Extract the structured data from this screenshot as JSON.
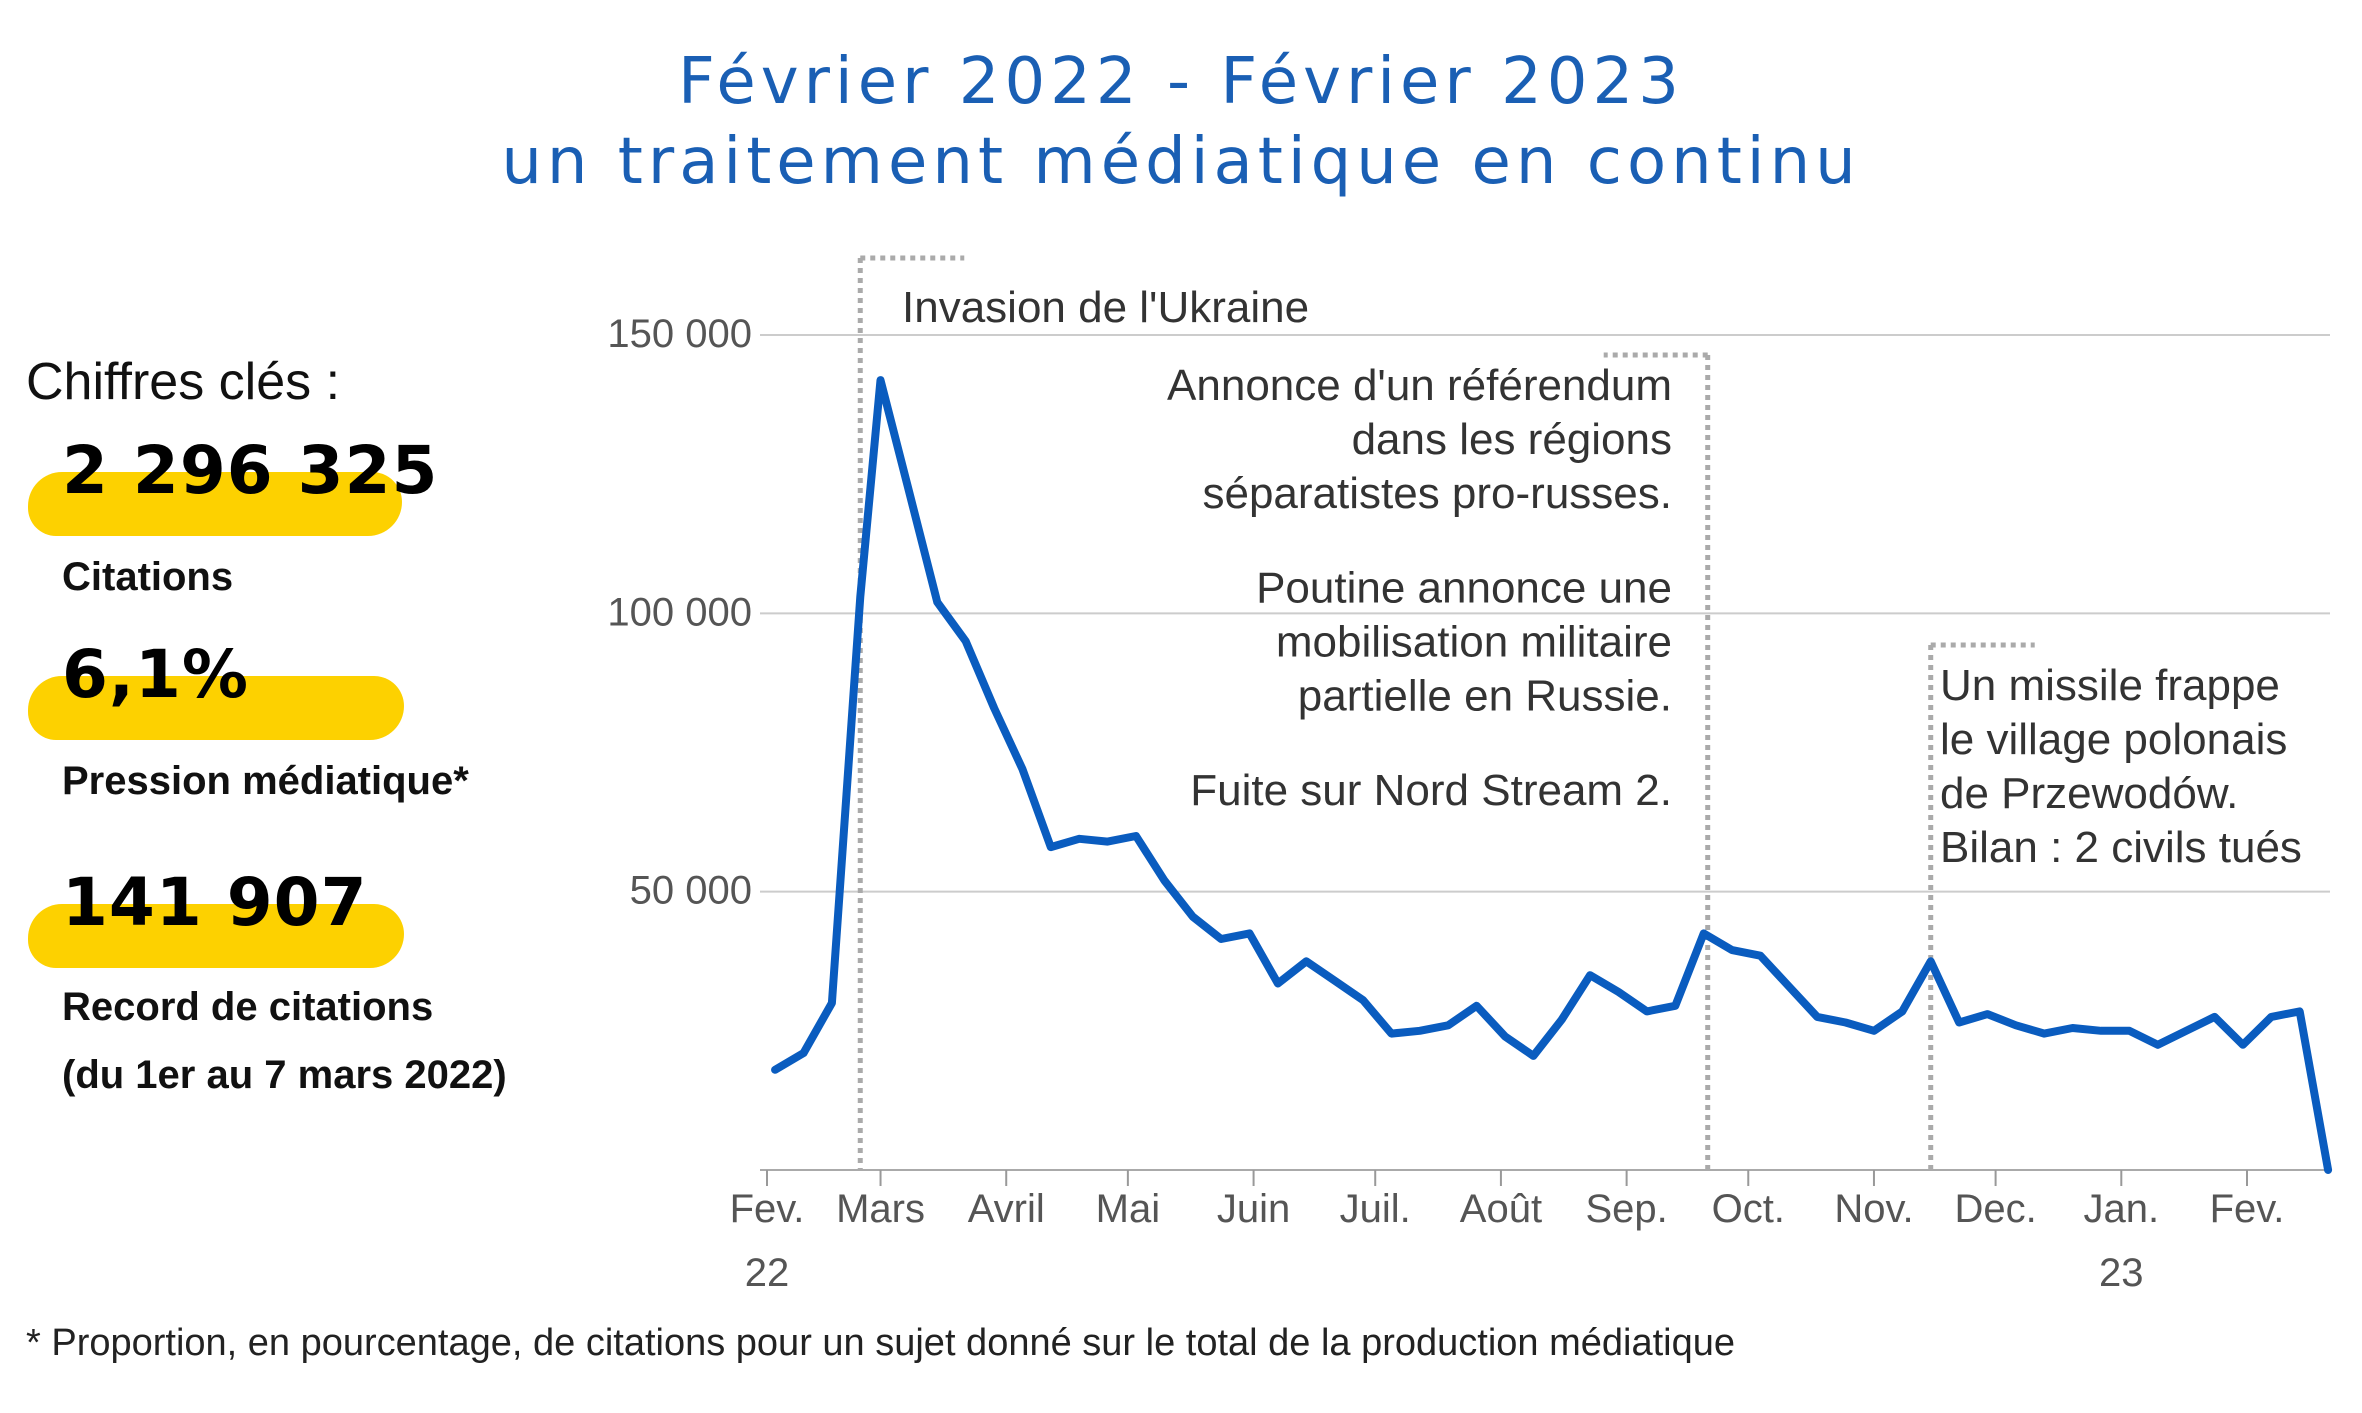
{
  "title": {
    "line1": "Février 2022 - Février 2023",
    "line2": "un traitement médiatique en continu"
  },
  "key_figures": {
    "heading": "Chiffres clés :",
    "items": [
      {
        "value": "2 296 325",
        "label_lines": [
          "Citations"
        ]
      },
      {
        "value": "6,1%",
        "label_lines": [
          "Pression médiatique*"
        ]
      },
      {
        "value": "141 907",
        "label_lines": [
          "Record de citations",
          "(du 1er au 7 mars 2022)"
        ]
      }
    ],
    "highlight_color": "#fdd100"
  },
  "footnote": "* Proportion, en pourcentage, de citations pour un sujet donné sur le total de la production médiatique",
  "chart_data": {
    "type": "line",
    "line_color": "#0a5cbf",
    "grid": true,
    "ylim": [
      0,
      150000
    ],
    "y_ticks": [
      {
        "value": 50000,
        "label": "50 000"
      },
      {
        "value": 100000,
        "label": "100 000"
      },
      {
        "value": 150000,
        "label": "150 000"
      }
    ],
    "x_ticks": [
      {
        "date": "2022-02-01",
        "label": "Fev.",
        "sublabel": "22"
      },
      {
        "date": "2022-03-01",
        "label": "Mars"
      },
      {
        "date": "2022-04-01",
        "label": "Avril"
      },
      {
        "date": "2022-05-01",
        "label": "Mai"
      },
      {
        "date": "2022-06-01",
        "label": "Juin"
      },
      {
        "date": "2022-07-01",
        "label": "Juil."
      },
      {
        "date": "2022-08-01",
        "label": "Août"
      },
      {
        "date": "2022-09-01",
        "label": "Sep."
      },
      {
        "date": "2022-10-01",
        "label": "Oct."
      },
      {
        "date": "2022-11-01",
        "label": "Nov."
      },
      {
        "date": "2022-12-01",
        "label": "Dec."
      },
      {
        "date": "2023-01-01",
        "label": "Jan.",
        "sublabel": "23"
      },
      {
        "date": "2023-02-01",
        "label": "Fev."
      }
    ],
    "series": [
      {
        "points": [
          [
            "2022-02-03",
            18000
          ],
          [
            "2022-02-10",
            21000
          ],
          [
            "2022-02-17",
            30000
          ],
          [
            "2022-02-24",
            103000
          ],
          [
            "2022-03-01",
            141907
          ],
          [
            "2022-03-08",
            122000
          ],
          [
            "2022-03-15",
            102000
          ],
          [
            "2022-03-22",
            95000
          ],
          [
            "2022-03-29",
            83000
          ],
          [
            "2022-04-05",
            72000
          ],
          [
            "2022-04-12",
            58000
          ],
          [
            "2022-04-19",
            59500
          ],
          [
            "2022-04-26",
            59000
          ],
          [
            "2022-05-03",
            60000
          ],
          [
            "2022-05-10",
            52000
          ],
          [
            "2022-05-17",
            45500
          ],
          [
            "2022-05-24",
            41500
          ],
          [
            "2022-05-31",
            42500
          ],
          [
            "2022-06-07",
            33500
          ],
          [
            "2022-06-14",
            37500
          ],
          [
            "2022-06-21",
            34000
          ],
          [
            "2022-06-28",
            30500
          ],
          [
            "2022-07-05",
            24500
          ],
          [
            "2022-07-12",
            25000
          ],
          [
            "2022-07-19",
            26000
          ],
          [
            "2022-07-26",
            29500
          ],
          [
            "2022-08-02",
            24000
          ],
          [
            "2022-08-09",
            20500
          ],
          [
            "2022-08-16",
            27000
          ],
          [
            "2022-08-23",
            35000
          ],
          [
            "2022-08-30",
            32000
          ],
          [
            "2022-09-06",
            28500
          ],
          [
            "2022-09-13",
            29500
          ],
          [
            "2022-09-20",
            42500
          ],
          [
            "2022-09-27",
            39500
          ],
          [
            "2022-10-04",
            38500
          ],
          [
            "2022-10-11",
            33000
          ],
          [
            "2022-10-18",
            27500
          ],
          [
            "2022-10-25",
            26500
          ],
          [
            "2022-11-01",
            25000
          ],
          [
            "2022-11-08",
            28500
          ],
          [
            "2022-11-15",
            37500
          ],
          [
            "2022-11-22",
            26500
          ],
          [
            "2022-11-29",
            28000
          ],
          [
            "2022-12-06",
            26000
          ],
          [
            "2022-12-13",
            24500
          ],
          [
            "2022-12-20",
            25500
          ],
          [
            "2022-12-27",
            25000
          ],
          [
            "2023-01-03",
            25000
          ],
          [
            "2023-01-10",
            22500
          ],
          [
            "2023-01-17",
            25000
          ],
          [
            "2023-01-24",
            27500
          ],
          [
            "2023-01-31",
            22500
          ],
          [
            "2023-02-07",
            27500
          ],
          [
            "2023-02-14",
            28500
          ],
          [
            "2023-02-21",
            0
          ]
        ]
      }
    ],
    "annotations": [
      {
        "date": "2022-02-24",
        "lines": [
          "Invasion de l'Ukraine"
        ],
        "anchor": "start"
      },
      {
        "date": "2022-09-21",
        "lines": [
          "Annonce d'un référendum",
          "dans les régions",
          "séparatistes pro-russes.",
          "",
          "Poutine annonce une",
          "mobilisation militaire",
          "partielle en Russie.",
          "",
          "Fuite sur Nord Stream 2."
        ],
        "anchor": "end"
      },
      {
        "date": "2022-11-15",
        "lines": [
          "Un missile frappe",
          "le village polonais",
          "de Przewodów.",
          "Bilan : 2 civils tués"
        ],
        "anchor": "start"
      }
    ]
  }
}
